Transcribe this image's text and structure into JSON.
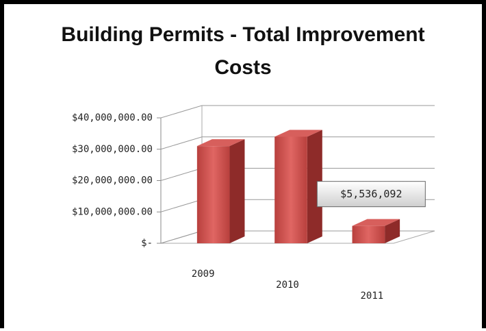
{
  "chart_data": {
    "type": "bar3d",
    "title": [
      "Building Permits - Total Improvement",
      "Costs"
    ],
    "categories": [
      "2009",
      "2010",
      "2011"
    ],
    "values": [
      31000000,
      34000000,
      5536092
    ],
    "value_labels": [
      null,
      null,
      "$5,536,092"
    ],
    "color": "#c0504d",
    "ylim": [
      0,
      40000000
    ],
    "yticks": [
      {
        "value": 0,
        "label": "$-"
      },
      {
        "value": 10000000,
        "label": "$10,000,000.00"
      },
      {
        "value": 20000000,
        "label": "$20,000,000.00"
      },
      {
        "value": 30000000,
        "label": "$30,000,000.00"
      },
      {
        "value": 40000000,
        "label": "$40,000,000.00"
      }
    ],
    "grid": true
  }
}
